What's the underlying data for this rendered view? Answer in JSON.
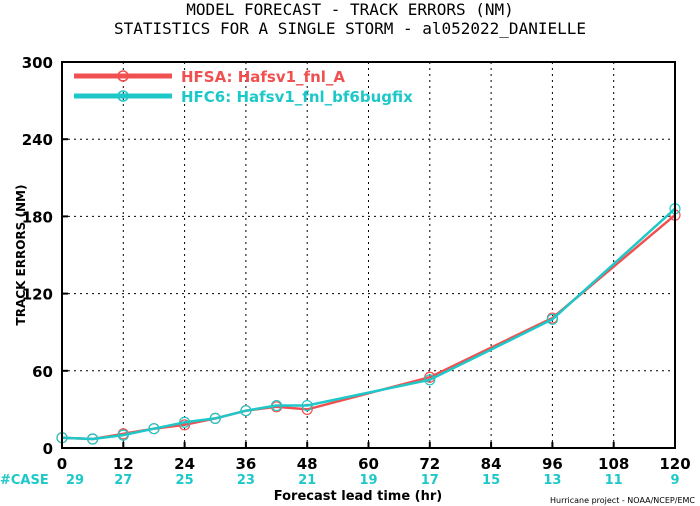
{
  "title_line1": "MODEL FORECAST - TRACK ERRORS (NM)",
  "title_line2": "STATISTICS FOR A SINGLE STORM - al052022_DANIELLE",
  "credit": "Hurricane project - NOAA/NCEP/EMC",
  "case_label": "#CASE",
  "colors": {
    "hfsa": "#f05050",
    "hfc6": "#1ec8c8",
    "case_text": "#1ec8c8"
  },
  "chart_data": {
    "type": "line",
    "xlabel": "Forecast lead time (hr)",
    "ylabel": "TRACK ERRORS (NM)",
    "xlim": [
      0,
      120
    ],
    "ylim": [
      0,
      300
    ],
    "xticks": [
      0,
      12,
      24,
      36,
      48,
      60,
      72,
      84,
      96,
      108,
      120
    ],
    "yticks": [
      0,
      60,
      120,
      180,
      240,
      300
    ],
    "ytick_labels": [
      "0",
      "60",
      "120",
      "180",
      "240",
      "300"
    ],
    "grid": true,
    "legend": "top-left",
    "series": [
      {
        "name": "HFSA: Hafsv1_fnl_A",
        "color": "#f05050",
        "x": [
          0,
          6,
          12,
          18,
          24,
          30,
          36,
          42,
          48,
          72,
          96,
          120
        ],
        "y": [
          8,
          7,
          11,
          15,
          18,
          23,
          29,
          32,
          30,
          55,
          101,
          181
        ]
      },
      {
        "name": "HFC6: Hafsv1_fnl_bf6bugfix",
        "color": "#1ec8c8",
        "x": [
          0,
          6,
          12,
          18,
          24,
          30,
          36,
          42,
          48,
          72,
          96,
          120
        ],
        "y": [
          8,
          7,
          10,
          15,
          20,
          23,
          29,
          33,
          33,
          53,
          100,
          186
        ]
      }
    ],
    "cases": [
      {
        "x": 0,
        "label": "29"
      },
      {
        "x": 12,
        "label": "27"
      },
      {
        "x": 24,
        "label": "25"
      },
      {
        "x": 36,
        "label": "23"
      },
      {
        "x": 48,
        "label": "21"
      },
      {
        "x": 60,
        "label": "19"
      },
      {
        "x": 72,
        "label": "17"
      },
      {
        "x": 84,
        "label": "15"
      },
      {
        "x": 96,
        "label": "13"
      },
      {
        "x": 108,
        "label": "11"
      },
      {
        "x": 120,
        "label": "9"
      }
    ]
  }
}
